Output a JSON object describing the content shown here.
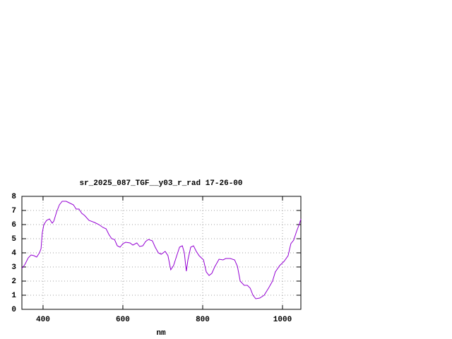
{
  "chart_data": {
    "type": "line",
    "title": "sr_2025_087_TGF__y03_r_rad 17-26-00",
    "x_label": "nm",
    "x": [
      347,
      354,
      363,
      370,
      377,
      384,
      391,
      395,
      398,
      402,
      409,
      416,
      423,
      427,
      434,
      441,
      448,
      458,
      465,
      476,
      483,
      490,
      497,
      504,
      515,
      529,
      540,
      550,
      558,
      565,
      572,
      579,
      586,
      593,
      600,
      607,
      618,
      625,
      635,
      642,
      650,
      657,
      664,
      674,
      681,
      689,
      696,
      706,
      713,
      720,
      727,
      735,
      742,
      749,
      754,
      759,
      763,
      770,
      777,
      784,
      791,
      802,
      809,
      816,
      823,
      830,
      841,
      851,
      858,
      869,
      880,
      887,
      894,
      904,
      912,
      919,
      926,
      933,
      943,
      954,
      965,
      975,
      982,
      993,
      1004,
      1014,
      1021,
      1028,
      1035,
      1043,
      1046
    ],
    "series": [
      {
        "color": "#9400d3",
        "values": [
          2.9,
          3.15,
          3.65,
          3.85,
          3.8,
          3.7,
          4.0,
          4.3,
          5.4,
          6.0,
          6.3,
          6.4,
          6.1,
          6.25,
          6.9,
          7.4,
          7.65,
          7.65,
          7.55,
          7.4,
          7.1,
          7.1,
          6.8,
          6.65,
          6.3,
          6.15,
          6.0,
          5.8,
          5.7,
          5.3,
          5.0,
          4.95,
          4.5,
          4.4,
          4.65,
          4.75,
          4.7,
          4.55,
          4.7,
          4.45,
          4.5,
          4.8,
          4.95,
          4.85,
          4.4,
          4.0,
          3.9,
          4.1,
          3.8,
          2.8,
          3.1,
          3.8,
          4.4,
          4.5,
          4.0,
          2.7,
          3.5,
          4.4,
          4.5,
          4.1,
          3.8,
          3.5,
          2.65,
          2.4,
          2.55,
          3.0,
          3.55,
          3.5,
          3.6,
          3.6,
          3.5,
          3.05,
          2.0,
          1.7,
          1.7,
          1.5,
          1.0,
          0.75,
          0.8,
          1.0,
          1.5,
          2.0,
          2.65,
          3.1,
          3.4,
          3.8,
          4.65,
          4.9,
          5.5,
          6.1,
          6.4
        ]
      }
    ],
    "xlim": [
      347,
      1046
    ],
    "ylim": [
      0,
      8
    ],
    "xticks": [
      400,
      600,
      800,
      1000
    ],
    "yticks": [
      0,
      1,
      2,
      3,
      4,
      5,
      6,
      7,
      8
    ],
    "grid": true
  }
}
